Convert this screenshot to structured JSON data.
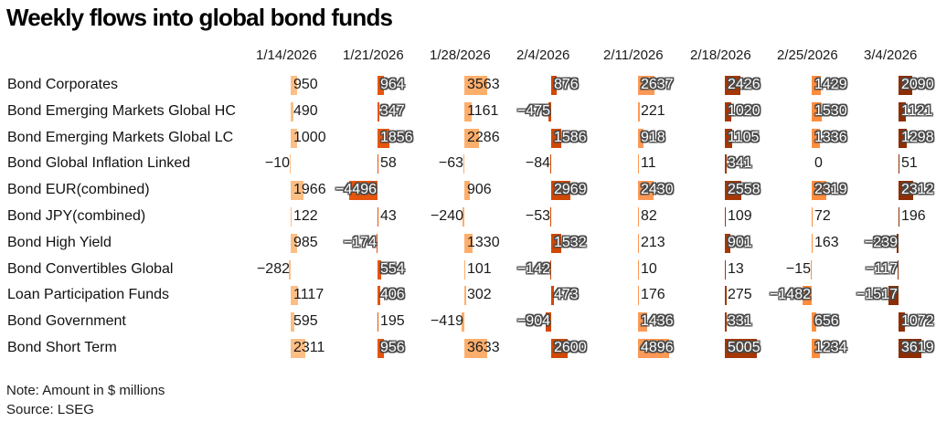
{
  "note": "Note: Amount in $ millions",
  "source": "Source: LSEG",
  "chart_data": {
    "type": "bar",
    "subtype": "table-of-bars",
    "title": "Weekly flows into global bond funds",
    "unit": "$ millions",
    "legend": "none",
    "columns": [
      "1/14/2026",
      "1/21/2026",
      "1/28/2026",
      "2/4/2026",
      "2/11/2026",
      "2/18/2026",
      "2/25/2026",
      "3/4/2026"
    ],
    "column_colors": [
      "#FDBE85",
      "#E6550D",
      "#FDAE6B",
      "#D04803",
      "#FD9956",
      "#A63603",
      "#FD8D3C",
      "#8C2D04"
    ],
    "column_is_dark": [
      false,
      true,
      false,
      true,
      true,
      true,
      true,
      true
    ],
    "rows": [
      {
        "label": "Bond Corporates",
        "values": [
          950,
          964,
          3563,
          876,
          2637,
          2426,
          1429,
          2090
        ]
      },
      {
        "label": "Bond Emerging Markets Global HC",
        "values": [
          490,
          347,
          1161,
          -475,
          221,
          1020,
          1530,
          1121
        ]
      },
      {
        "label": "Bond Emerging Markets Global LC",
        "values": [
          1000,
          1856,
          2286,
          1586,
          918,
          1105,
          1336,
          1298
        ]
      },
      {
        "label": "Bond Global Inflation Linked",
        "values": [
          -10,
          58,
          -63,
          -84,
          11,
          341,
          0,
          51
        ]
      },
      {
        "label": "Bond EUR(combined)",
        "values": [
          1966,
          -4496,
          906,
          2969,
          2430,
          2558,
          2319,
          2312
        ]
      },
      {
        "label": "Bond JPY(combined)",
        "values": [
          122,
          43,
          -240,
          -53,
          82,
          109,
          72,
          196
        ]
      },
      {
        "label": "Bond High Yield",
        "values": [
          985,
          -174,
          1330,
          1532,
          213,
          901,
          163,
          -239
        ]
      },
      {
        "label": "Bond Convertibles Global",
        "values": [
          -282,
          554,
          101,
          -142,
          10,
          13,
          -15,
          -117
        ]
      },
      {
        "label": "Loan Participation Funds",
        "values": [
          1117,
          406,
          302,
          473,
          176,
          275,
          -1482,
          -1517
        ]
      },
      {
        "label": "Bond Government",
        "values": [
          595,
          195,
          -419,
          -904,
          1436,
          331,
          656,
          1072
        ]
      },
      {
        "label": "Bond Short Term",
        "values": [
          2311,
          956,
          3633,
          2600,
          4896,
          5005,
          1234,
          3619
        ]
      }
    ]
  }
}
